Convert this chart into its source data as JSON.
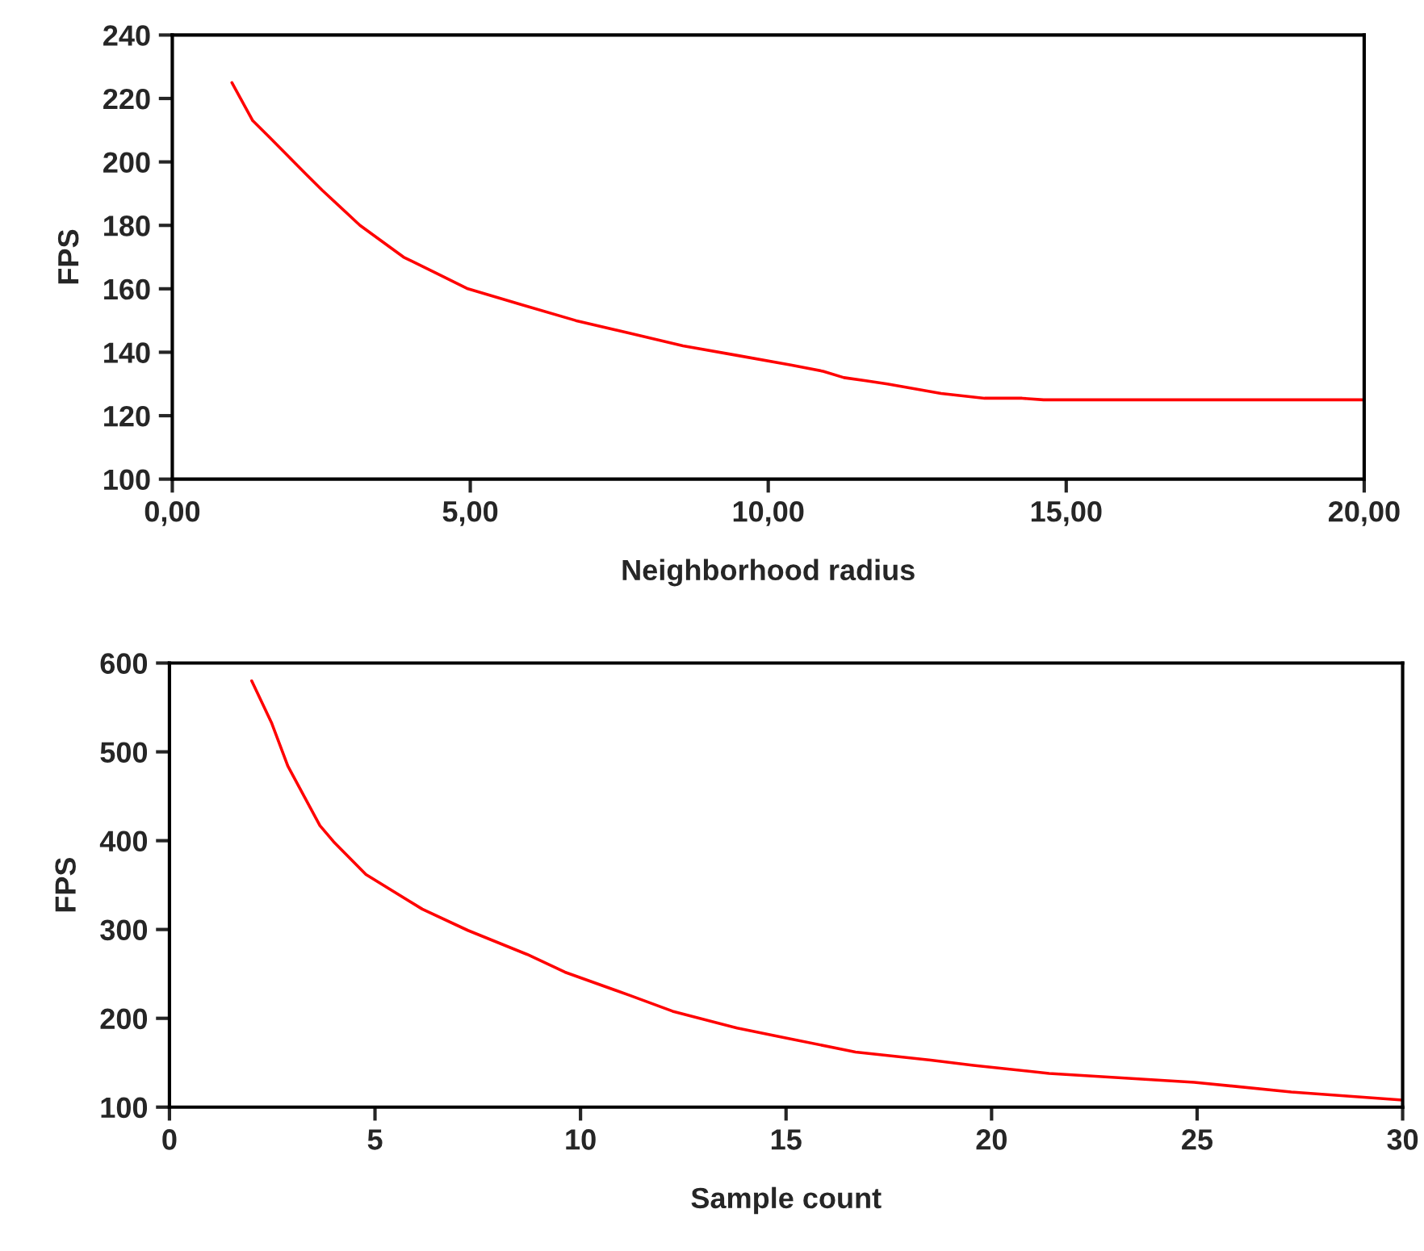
{
  "chart_data": [
    {
      "type": "line",
      "xlabel": "Neighborhood radius",
      "ylabel": "FPS",
      "x": [
        1.0,
        1.35,
        1.62,
        2.25,
        2.52,
        3.15,
        3.88,
        4.42,
        4.96,
        5.86,
        6.77,
        7.67,
        8.57,
        9.48,
        10.38,
        10.92,
        11.27,
        11.64,
        12.0,
        12.9,
        13.63,
        14.26,
        14.62,
        20.0
      ],
      "series": [
        {
          "color": "#ff0000",
          "values": [
            225,
            213,
            208,
            196,
            191,
            180,
            170,
            165,
            160,
            155,
            150,
            146,
            142,
            139,
            136,
            134,
            132,
            131,
            130,
            127,
            125.5,
            125.5,
            125,
            125
          ]
        }
      ],
      "xlim": [
        0,
        20
      ],
      "ylim": [
        100,
        240
      ],
      "xticks": [
        {
          "value": 0,
          "label": "0,00"
        },
        {
          "value": 5,
          "label": "5,00"
        },
        {
          "value": 10,
          "label": "10,00"
        },
        {
          "value": 15,
          "label": "15,00"
        },
        {
          "value": 20,
          "label": "20,00"
        }
      ],
      "yticks": [
        100,
        120,
        140,
        160,
        180,
        200,
        220,
        240
      ]
    },
    {
      "type": "line",
      "xlabel": "Sample count",
      "ylabel": "FPS",
      "x": [
        2.0,
        2.49,
        2.88,
        3.66,
        3.99,
        4.78,
        6.15,
        7.26,
        8.7,
        9.62,
        11.19,
        12.24,
        13.81,
        14.99,
        16.69,
        18.52,
        19.56,
        21.4,
        24.93,
        27.29,
        30.0
      ],
      "series": [
        {
          "color": "#ff0000",
          "values": [
            580,
            532,
            484,
            417,
            399,
            362,
            323,
            299,
            272,
            252,
            226,
            208,
            189,
            178,
            162,
            153,
            147,
            138,
            128,
            117,
            108
          ]
        }
      ],
      "xlim": [
        0,
        30
      ],
      "ylim": [
        100,
        600
      ],
      "xticks": [
        0,
        5,
        10,
        15,
        20,
        25,
        30
      ],
      "yticks": [
        100,
        200,
        300,
        400,
        500,
        600
      ]
    }
  ]
}
